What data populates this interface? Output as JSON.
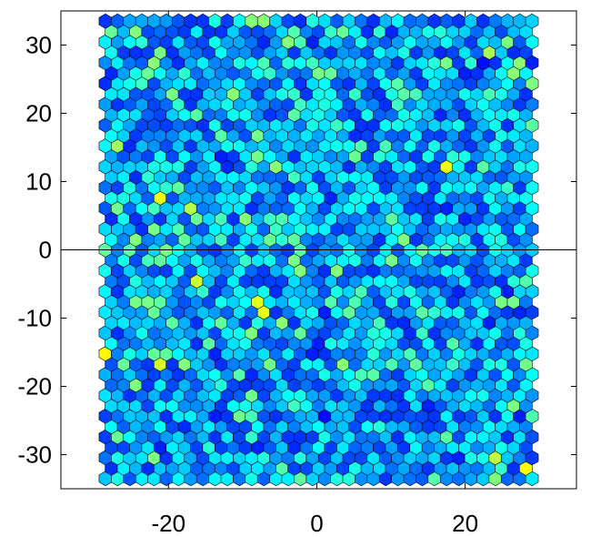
{
  "chart_data": {
    "type": "heatmap",
    "subtype": "hexbin",
    "title": "",
    "xlabel": "",
    "ylabel": "",
    "xlim": [
      -34.5,
      35
    ],
    "ylim": [
      -35,
      35
    ],
    "x_ticks": [
      -20,
      0,
      20
    ],
    "x_tick_labels": [
      "-20",
      "0",
      "20"
    ],
    "y_ticks": [
      -30,
      -20,
      -10,
      0,
      10,
      20,
      30
    ],
    "y_tick_labels": [
      "-30",
      "-20",
      "-10",
      "0",
      "10",
      "20",
      "30"
    ],
    "reference_line_y": 0,
    "grid": false,
    "legend": "none",
    "hex_grid": {
      "x_min": -28.5,
      "x_max": 29.0,
      "y_min": -33.5,
      "y_max": 33.5,
      "cols": 36,
      "rows": 45
    },
    "value_range": [
      0,
      1
    ],
    "highlights": [
      {
        "x": -28.0,
        "y": -15.5,
        "value": 0.92
      },
      {
        "x": -21.5,
        "y": 7.5,
        "value": 0.88
      },
      {
        "x": -21.0,
        "y": -16.5,
        "value": 0.84
      },
      {
        "x": -16.5,
        "y": -5.0,
        "value": 0.82
      },
      {
        "x": -16.5,
        "y": 6.5,
        "value": 0.78
      },
      {
        "x": -7.5,
        "y": -8.5,
        "value": 0.86
      },
      {
        "x": 17.5,
        "y": 12.0,
        "value": 0.88
      },
      {
        "x": 23.0,
        "y": 29.5,
        "value": 0.76
      },
      {
        "x": 24.5,
        "y": -30.5,
        "value": 0.8
      },
      {
        "x": 28.5,
        "y": -31.5,
        "value": 0.9
      },
      {
        "x": -26.5,
        "y": 15.5,
        "value": 0.74
      },
      {
        "x": 27.0,
        "y": 26.5,
        "value": 0.7
      },
      {
        "x": 23.0,
        "y": 28.0,
        "value": 0.02
      },
      {
        "x": 1.0,
        "y": -24.0,
        "value": 0.02
      },
      {
        "x": 0.0,
        "y": -14.5,
        "value": 0.05
      }
    ]
  }
}
